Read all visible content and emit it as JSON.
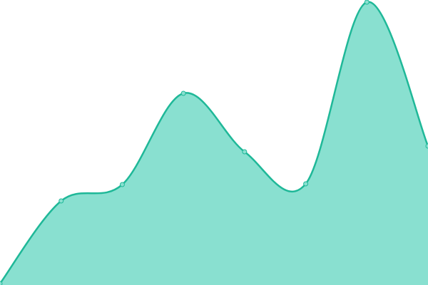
{
  "chart_data": {
    "type": "area",
    "x": [
      0,
      1,
      2,
      3,
      4,
      5,
      6,
      7
    ],
    "xlim": [
      0,
      7
    ],
    "ylim": [
      0,
      400
    ],
    "series": [
      {
        "color": "#1fb898",
        "fill": "#89e0d0",
        "values": [
          2,
          118,
          141,
          269,
          187,
          142,
          397,
          195
        ]
      }
    ]
  }
}
